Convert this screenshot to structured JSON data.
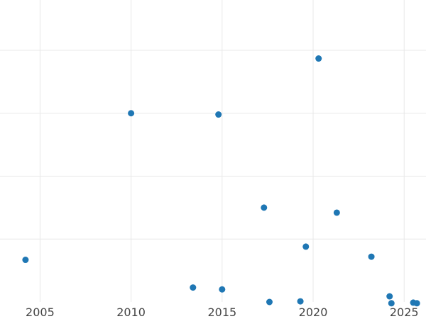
{
  "chart_data": {
    "type": "scatter",
    "title": "",
    "xlabel": "",
    "ylabel": "",
    "xlim": [
      2002.8,
      2026.2
    ],
    "ylim": [
      0,
      4.8
    ],
    "grid": true,
    "x_ticks": [
      2005,
      2010,
      2015,
      2020,
      2025
    ],
    "x_tick_labels": [
      "2005",
      "2010",
      "2015",
      "2020",
      "2025"
    ],
    "y_ticks": [
      1,
      2,
      3,
      4
    ],
    "colors": {
      "marker": "#1f77b4",
      "grid": "#e8e8e8"
    },
    "series": [
      {
        "points": [
          {
            "x": 2004.2,
            "y": 0.67
          },
          {
            "x": 2010.0,
            "y": 3.0
          },
          {
            "x": 2013.4,
            "y": 0.23
          },
          {
            "x": 2014.8,
            "y": 2.98
          },
          {
            "x": 2015.0,
            "y": 0.2
          },
          {
            "x": 2017.3,
            "y": 1.5
          },
          {
            "x": 2017.6,
            "y": 0.0
          },
          {
            "x": 2019.3,
            "y": 0.01
          },
          {
            "x": 2019.6,
            "y": 0.88
          },
          {
            "x": 2020.3,
            "y": 3.87
          },
          {
            "x": 2021.3,
            "y": 1.42
          },
          {
            "x": 2023.2,
            "y": 0.72
          },
          {
            "x": 2024.2,
            "y": 0.09
          },
          {
            "x": 2024.3,
            "y": -0.02
          },
          {
            "x": 2025.5,
            "y": -0.01
          },
          {
            "x": 2025.7,
            "y": -0.02
          }
        ]
      }
    ]
  }
}
